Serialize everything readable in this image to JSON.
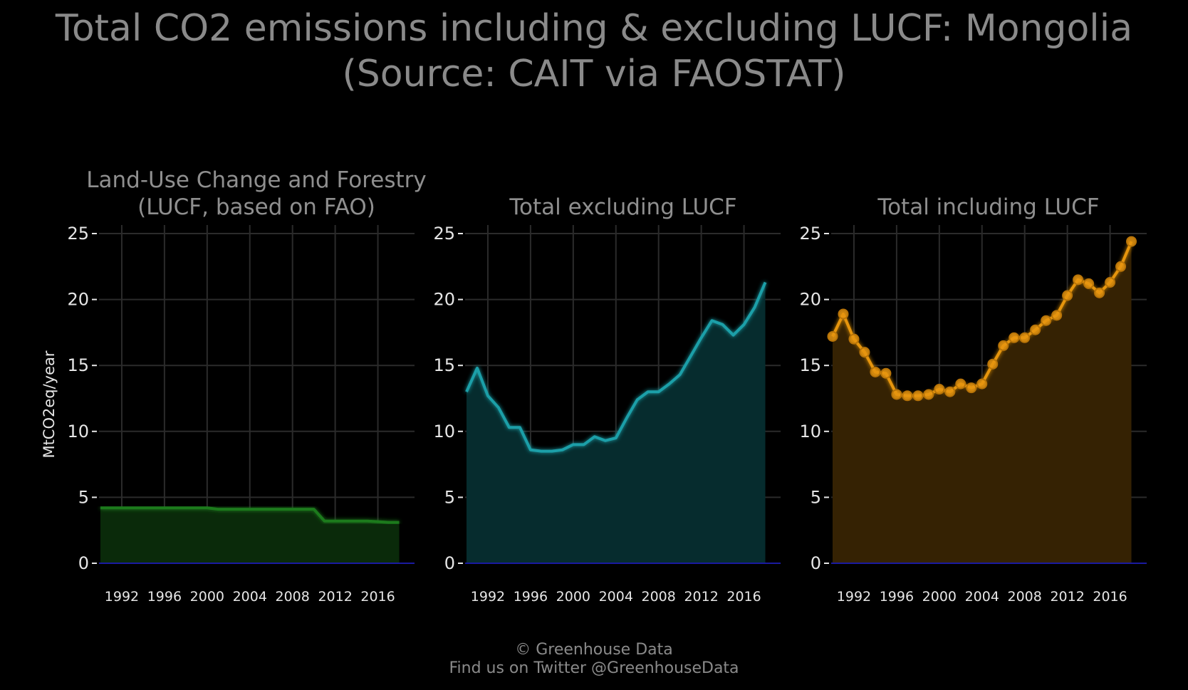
{
  "title_line1": "Total CO2 emissions including & excluding LUCF: Mongolia",
  "title_line2": "(Source: CAIT via FAOSTAT)",
  "footer_line1": "© Greenhouse Data",
  "footer_line2": "Find us on Twitter @GreenhouseData",
  "ylabel": "MtCO2eq/year",
  "colors": {
    "background": "#000000",
    "grid": "#2b2b2b",
    "zero_line": "#1a1aa0",
    "lucf": "#1f7a1f",
    "excl": "#1a9fa8",
    "incl": "#e69510"
  },
  "chart_data": [
    {
      "type": "area",
      "title_line1": "Land-Use Change and Forestry",
      "title_line2": "(LUCF, based on FAO)",
      "color": "#1f7a1f",
      "fill": "#0a2a0a",
      "markers": false,
      "x": [
        1990,
        1991,
        1992,
        1993,
        1994,
        1995,
        1996,
        1997,
        1998,
        1999,
        2000,
        2001,
        2002,
        2003,
        2004,
        2005,
        2006,
        2007,
        2008,
        2009,
        2010,
        2011,
        2012,
        2013,
        2014,
        2015,
        2016,
        2017,
        2018
      ],
      "values": [
        4.2,
        4.2,
        4.2,
        4.2,
        4.2,
        4.2,
        4.2,
        4.2,
        4.2,
        4.2,
        4.2,
        4.1,
        4.1,
        4.1,
        4.1,
        4.1,
        4.1,
        4.1,
        4.1,
        4.1,
        4.1,
        3.2,
        3.2,
        3.2,
        3.2,
        3.2,
        3.15,
        3.1,
        3.1
      ],
      "xticks": [
        1992,
        1996,
        2000,
        2004,
        2008,
        2012,
        2016
      ],
      "yticks": [
        0,
        5,
        10,
        15,
        20,
        25
      ],
      "ylim": [
        0,
        25.5
      ],
      "xlim": [
        1990,
        2019.3
      ],
      "grid": true
    },
    {
      "type": "area",
      "title_line1": "",
      "title_line2": "Total excluding LUCF",
      "color": "#1a9fa8",
      "fill": "#062c2e",
      "markers": false,
      "x": [
        1990,
        1991,
        1992,
        1993,
        1994,
        1995,
        1996,
        1997,
        1998,
        1999,
        2000,
        2001,
        2002,
        2003,
        2004,
        2005,
        2006,
        2007,
        2008,
        2009,
        2010,
        2011,
        2012,
        2013,
        2014,
        2015,
        2016,
        2017,
        2018
      ],
      "values": [
        13.0,
        14.8,
        12.7,
        11.8,
        10.3,
        10.3,
        8.6,
        8.5,
        8.5,
        8.6,
        9.0,
        9.0,
        9.6,
        9.3,
        9.5,
        11.0,
        12.4,
        13.0,
        13.0,
        13.6,
        14.3,
        15.7,
        17.1,
        18.4,
        18.1,
        17.3,
        18.1,
        19.4,
        21.3
      ],
      "xticks": [
        1992,
        1996,
        2000,
        2004,
        2008,
        2012,
        2016
      ],
      "yticks": [
        0,
        5,
        10,
        15,
        20,
        25
      ],
      "ylim": [
        0,
        25.5
      ],
      "xlim": [
        1990,
        2019.3
      ],
      "grid": true
    },
    {
      "type": "area",
      "title_line1": "",
      "title_line2": "Total including LUCF",
      "color": "#e69510",
      "fill": "#352203",
      "markers": true,
      "x": [
        1990,
        1991,
        1992,
        1993,
        1994,
        1995,
        1996,
        1997,
        1998,
        1999,
        2000,
        2001,
        2002,
        2003,
        2004,
        2005,
        2006,
        2007,
        2008,
        2009,
        2010,
        2011,
        2012,
        2013,
        2014,
        2015,
        2016,
        2017,
        2018
      ],
      "values": [
        17.2,
        18.9,
        17.0,
        16.0,
        14.5,
        14.4,
        12.8,
        12.7,
        12.7,
        12.8,
        13.2,
        13.0,
        13.6,
        13.3,
        13.6,
        15.1,
        16.5,
        17.1,
        17.1,
        17.7,
        18.4,
        18.8,
        20.3,
        21.5,
        21.2,
        20.5,
        21.3,
        22.5,
        24.4
      ],
      "xticks": [
        1992,
        1996,
        2000,
        2004,
        2008,
        2012,
        2016
      ],
      "yticks": [
        0,
        5,
        10,
        15,
        20,
        25
      ],
      "ylim": [
        0,
        25.5
      ],
      "xlim": [
        1990,
        2019.3
      ],
      "grid": true
    }
  ]
}
